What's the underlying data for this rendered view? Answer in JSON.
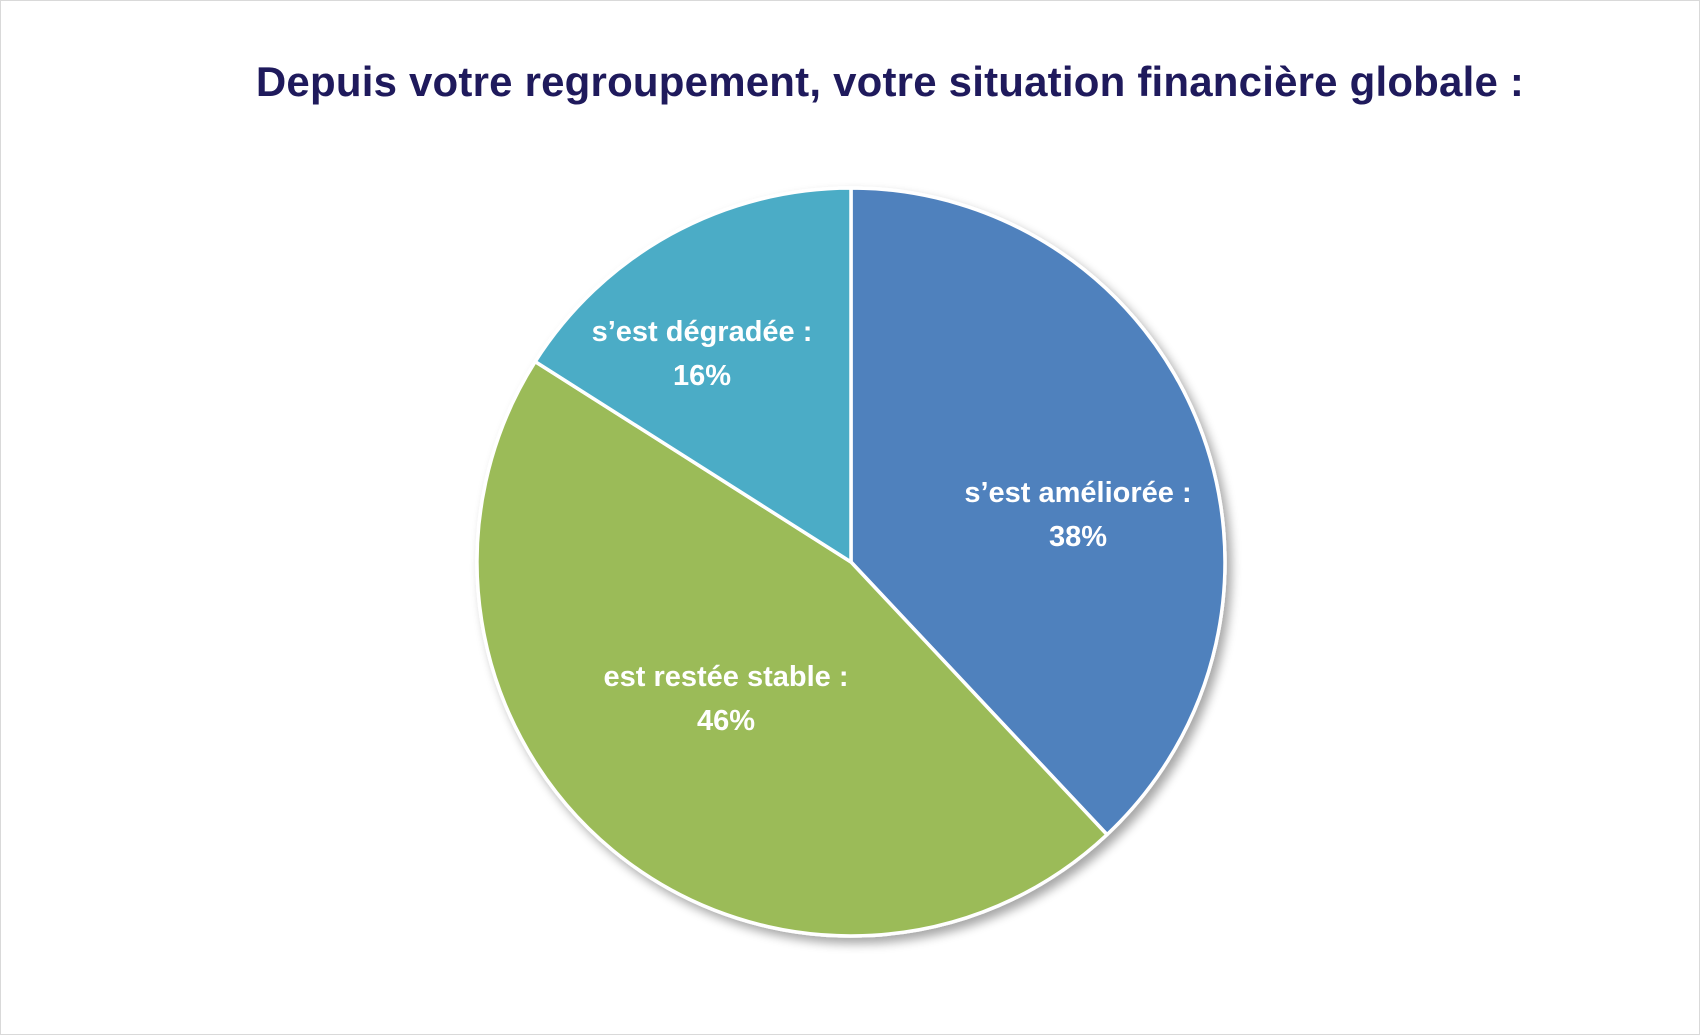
{
  "chart_data": {
    "type": "pie",
    "title": "Depuis votre regroupement, votre situation financière globale :",
    "slices": [
      {
        "label": "s’est améliorée :",
        "value": 38,
        "value_label": "38%",
        "color": "#4f81bd"
      },
      {
        "label": "est restée stable :",
        "value": 46,
        "value_label": "46%",
        "color": "#9bbb59"
      },
      {
        "label": "s’est dégradée :",
        "value": 16,
        "value_label": "16%",
        "color": "#4bacc6"
      }
    ],
    "start": "12 o'clock",
    "direction": "clockwise",
    "legend": "none",
    "slice_border_color": "#ffffff"
  }
}
